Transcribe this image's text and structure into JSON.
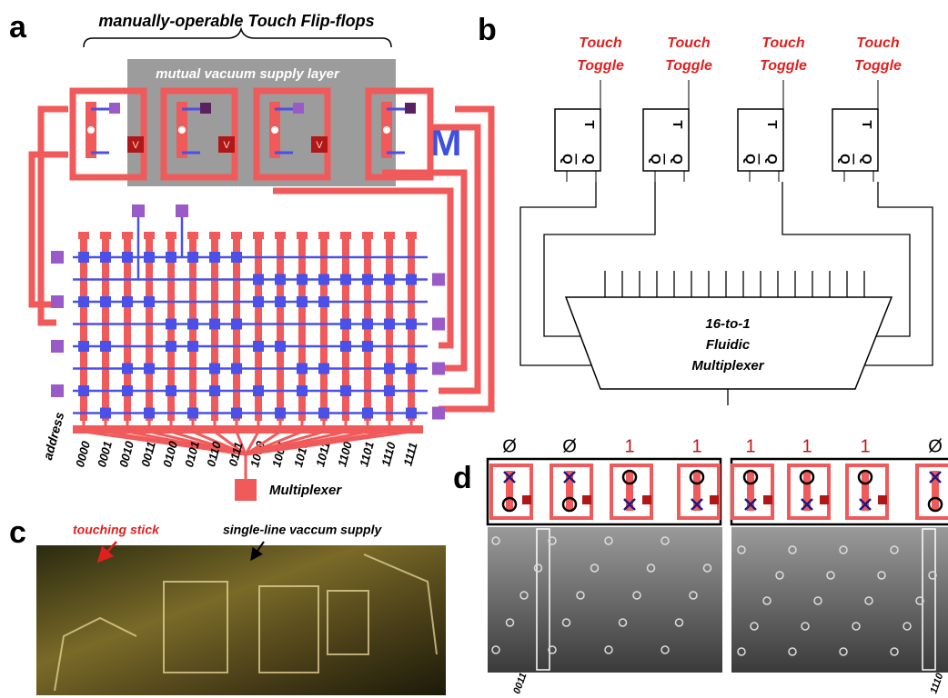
{
  "panel_a": {
    "label": "a",
    "title": "manually-operable Touch Flip-flops",
    "layer": "mutual vacuum supply layer",
    "logo": "M",
    "valve_label": "V",
    "axis_label": "address",
    "addresses": [
      "0000",
      "0001",
      "0010",
      "0011",
      "0100",
      "0101",
      "0110",
      "0111",
      "1000",
      "1001",
      "1010",
      "1011",
      "1100",
      "1101",
      "1110",
      "1111"
    ],
    "output": "Multiplexer"
  },
  "panel_b": {
    "label": "b",
    "toggles": [
      {
        "line1": "Touch",
        "line2": "Toggle"
      },
      {
        "line1": "Touch",
        "line2": "Toggle"
      },
      {
        "line1": "Touch",
        "line2": "Toggle"
      },
      {
        "line1": "Touch",
        "line2": "Toggle"
      }
    ],
    "flipflop": {
      "t": "T",
      "q": "Q",
      "qbar": "Q"
    },
    "mux": [
      "16-to-1",
      "Fluidic",
      "Multiplexer"
    ]
  },
  "panel_c": {
    "label": "c",
    "annotations": [
      "touching stick",
      "single-line vaccum supply"
    ]
  },
  "panel_d": {
    "label": "d",
    "states": [
      "Ø",
      "Ø",
      "1",
      "1",
      "1",
      "1",
      "1",
      "Ø"
    ],
    "addresses": [
      "0011",
      "1110"
    ]
  }
}
